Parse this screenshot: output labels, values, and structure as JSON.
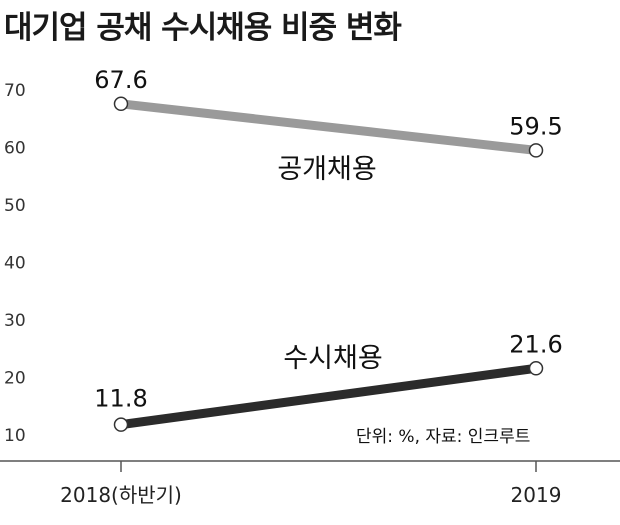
{
  "title": "대기업 공채 수시채용 비중 변화",
  "note": "단위: %, 자료: 인크루트",
  "chart_data": {
    "type": "line",
    "title": "대기업 공채 수시채용 비중 변화",
    "unit": "%",
    "source": "인크루트",
    "x": [
      "2018(하반기)",
      "2019"
    ],
    "yticks": [
      10,
      20,
      30,
      40,
      50,
      60,
      70
    ],
    "ylim": [
      10,
      70
    ],
    "grid": false,
    "series": [
      {
        "name": "공개채용",
        "values": [
          67.6,
          59.5
        ],
        "labels": [
          "67.6",
          "59.5"
        ],
        "color": "#9a9a9a"
      },
      {
        "name": "수시채용",
        "values": [
          11.8,
          21.6
        ],
        "labels": [
          "11.8",
          "21.6"
        ],
        "color": "#2b2b2b"
      }
    ]
  }
}
